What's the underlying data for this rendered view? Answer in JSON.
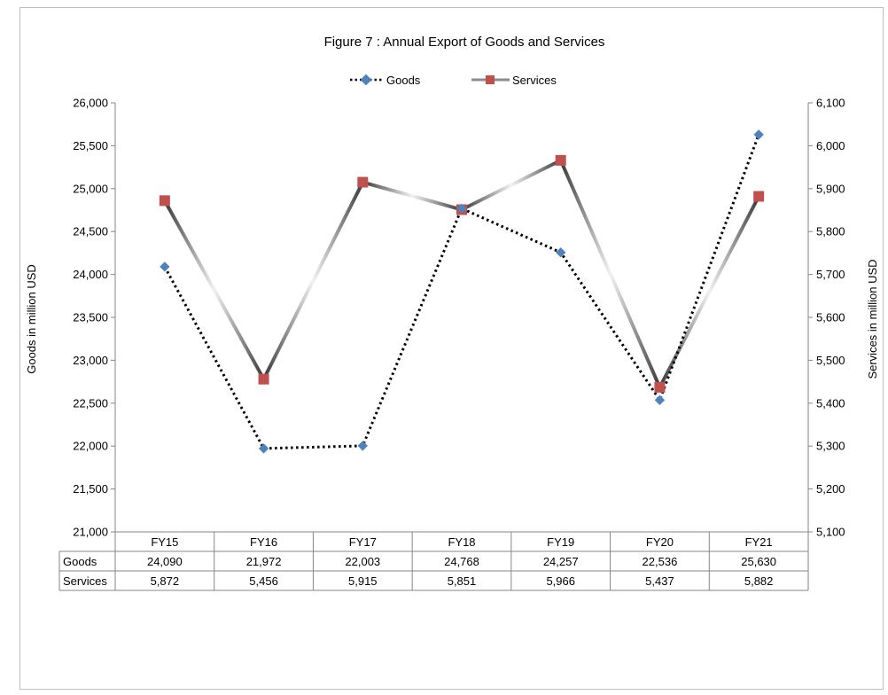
{
  "chart_data": {
    "type": "line",
    "title": "Figure  7 : Annual Export of Goods and Services",
    "categories": [
      "FY15",
      "FY16",
      "FY17",
      "FY18",
      "FY19",
      "FY20",
      "FY21"
    ],
    "series": [
      {
        "name": "Goods",
        "axis": "left",
        "values": [
          24090,
          21972,
          22003,
          24768,
          24257,
          22536,
          25630
        ],
        "value_labels": [
          "24,090",
          "21,972",
          "22,003",
          "24,768",
          "24,257",
          "22,536",
          "25,630"
        ],
        "line_style": "dotted",
        "line_color": "#000000",
        "marker": "diamond",
        "marker_color": "#4f81bd"
      },
      {
        "name": "Services",
        "axis": "right",
        "values": [
          5872,
          5456,
          5915,
          5851,
          5966,
          5437,
          5882
        ],
        "value_labels": [
          "5,872",
          "5,456",
          "5,915",
          "5,851",
          "5,966",
          "5,437",
          "5,882"
        ],
        "line_style": "solid-gradient",
        "line_color": "#7f7f7f",
        "marker": "square",
        "marker_color": "#c0504d"
      }
    ],
    "ylabel_left": "Goods in million USD",
    "ylabel_right": "Services in million  USD",
    "ylim_left": [
      21000,
      26000
    ],
    "ylim_right": [
      5100,
      6100
    ],
    "yticks_left": [
      "21,000",
      "21,500",
      "22,000",
      "22,500",
      "23,000",
      "23,500",
      "24,000",
      "24,500",
      "25,000",
      "25,500",
      "26,000"
    ],
    "yticks_right": [
      "5,100",
      "5,200",
      "5,300",
      "5,400",
      "5,500",
      "5,600",
      "5,700",
      "5,800",
      "5,900",
      "6,000",
      "6,100"
    ],
    "legend_placement": "top-center",
    "data_table": true,
    "grid": false
  }
}
